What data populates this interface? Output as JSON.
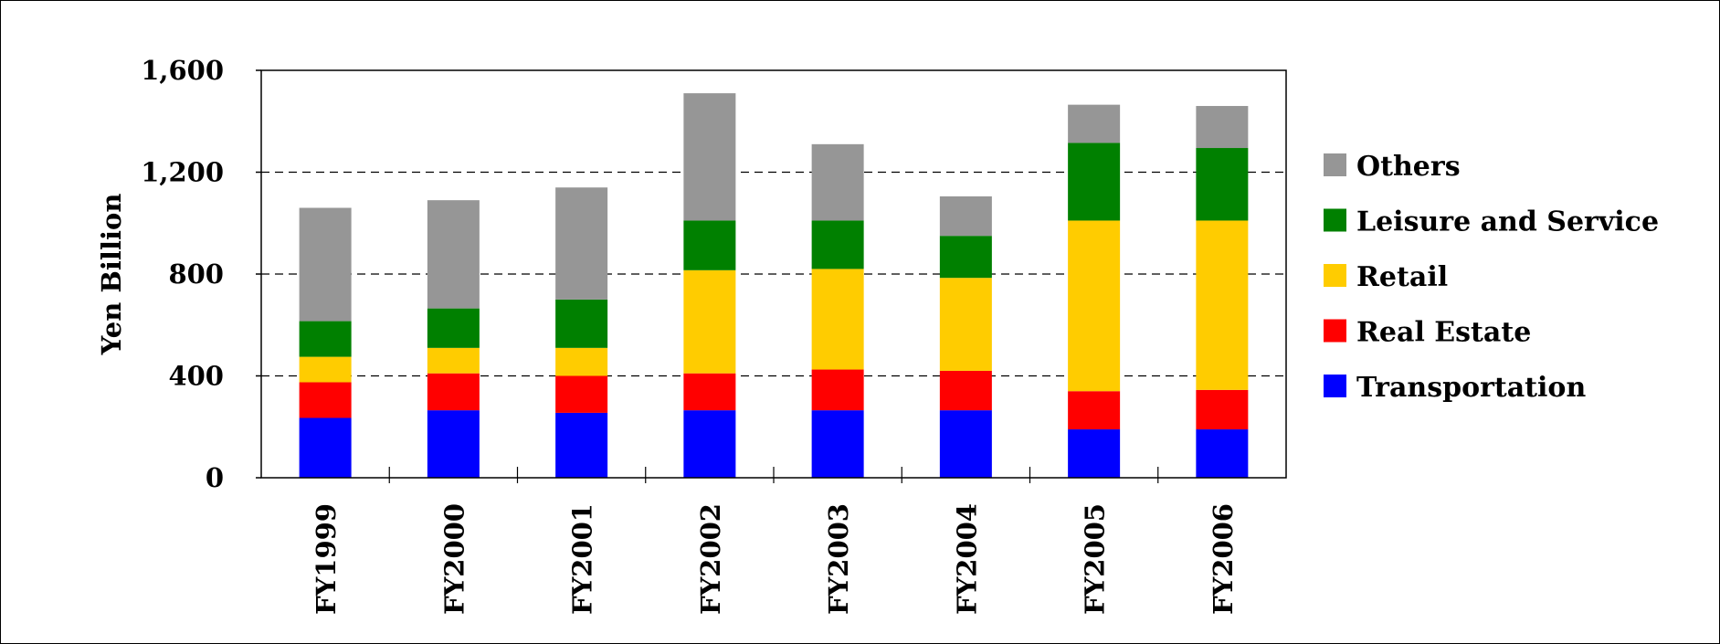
{
  "chart_data": {
    "type": "bar",
    "stacked": true,
    "title": "",
    "xlabel": "",
    "ylabel": "Yen Billion",
    "ylim": [
      0,
      1600
    ],
    "yticks": [
      0,
      400,
      800,
      1200,
      1600
    ],
    "ytick_labels": [
      "0",
      "400",
      "800",
      "1,200",
      "1,600"
    ],
    "grid": "horizontal dashed",
    "legend_position": "right",
    "categories": [
      "FY1999",
      "FY2000",
      "FY2001",
      "FY2002",
      "FY2003",
      "FY2004",
      "FY2005",
      "FY2006"
    ],
    "series": [
      {
        "name": "Transportation",
        "color": "#0000ff",
        "values": [
          235,
          265,
          255,
          265,
          265,
          265,
          190,
          190
        ]
      },
      {
        "name": "Real Estate",
        "color": "#ff0000",
        "values": [
          140,
          145,
          145,
          145,
          160,
          155,
          150,
          155
        ]
      },
      {
        "name": "Retail",
        "color": "#ffcc00",
        "values": [
          100,
          100,
          110,
          405,
          395,
          365,
          670,
          665
        ]
      },
      {
        "name": "Leisure and Service",
        "color": "#008000",
        "values": [
          140,
          155,
          190,
          195,
          190,
          165,
          305,
          285
        ]
      },
      {
        "name": "Others",
        "color": "#969696",
        "values": [
          445,
          425,
          440,
          500,
          300,
          155,
          150,
          165
        ]
      }
    ],
    "legend_order": [
      "Others",
      "Leisure and Service",
      "Retail",
      "Real Estate",
      "Transportation"
    ]
  }
}
